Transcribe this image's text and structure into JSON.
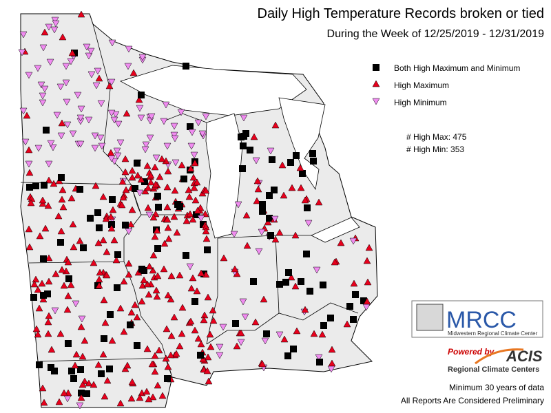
{
  "header": {
    "title": "Daily High Temperature Records broken or tied",
    "subtitle": "During the Week of 12/25/2019 - 12/31/2019"
  },
  "legend": [
    {
      "label": "Both High Maximum and Minimum"
    },
    {
      "label": "High Maximum"
    },
    {
      "label": "High Minimum"
    }
  ],
  "counts": [
    "# High Max: 475",
    "# High Min: 353"
  ],
  "logos": {
    "mrcc": "MRCC",
    "mrcc_name": "Midwestern Regional Climate Center",
    "powered": "Powered by",
    "acis": "ACIS",
    "acis_name": "Regional Climate Centers"
  },
  "notes": [
    "Minimum 30 years of data",
    "All Reports Are Considered Preliminary"
  ]
}
